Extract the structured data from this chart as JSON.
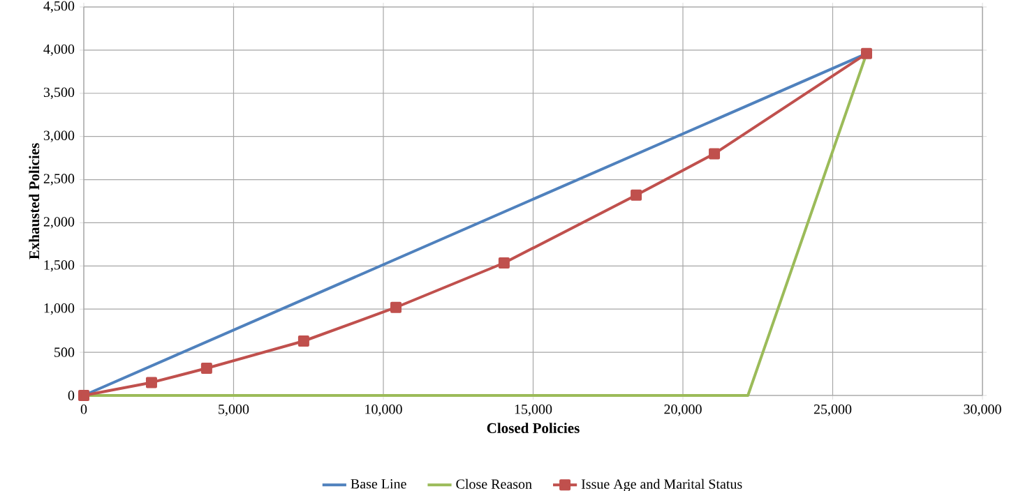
{
  "chart_data": {
    "type": "line",
    "xlabel": "Closed Policies",
    "ylabel": "Exhausted Policies",
    "xlim": [
      0,
      30000
    ],
    "ylim": [
      0,
      4500
    ],
    "xticks": [
      0,
      {
        "value": 5000,
        "label": "5,000"
      },
      {
        "value": 10000,
        "label": "10,000"
      },
      {
        "value": 15000,
        "label": "15,000"
      },
      {
        "value": 20000,
        "label": "20,000"
      },
      {
        "value": 25000,
        "label": "25,000"
      },
      {
        "value": 30000,
        "label": "30,000"
      }
    ],
    "yticks": [
      0,
      500,
      {
        "value": 1000,
        "label": "1,000"
      },
      {
        "value": 1500,
        "label": "1,500"
      },
      {
        "value": 2000,
        "label": "2,000"
      },
      {
        "value": 2500,
        "label": "2,500"
      },
      {
        "value": 3000,
        "label": "3,000"
      },
      {
        "value": 3500,
        "label": "3,500"
      },
      {
        "value": 4000,
        "label": "4,000"
      },
      {
        "value": 4500,
        "label": "4,500"
      }
    ],
    "grid": true,
    "legend": "bottom",
    "series": [
      {
        "name": "Base Line",
        "color": "#4f81bd",
        "x": [
          0,
          26130
        ],
        "values": [
          0,
          3960
        ]
      },
      {
        "name": "Close Reason",
        "color": "#9bbb59",
        "x": [
          0,
          22170,
          26130
        ],
        "values": [
          0,
          0,
          3960
        ]
      },
      {
        "name": "Issue Age and Marital Status",
        "color": "#c0504d",
        "marker": "square",
        "x": [
          0,
          2260,
          4100,
          7340,
          10420,
          14030,
          18440,
          21050,
          26130
        ],
        "values": [
          0,
          150,
          315,
          630,
          1020,
          1535,
          2320,
          2800,
          3960
        ]
      }
    ]
  }
}
